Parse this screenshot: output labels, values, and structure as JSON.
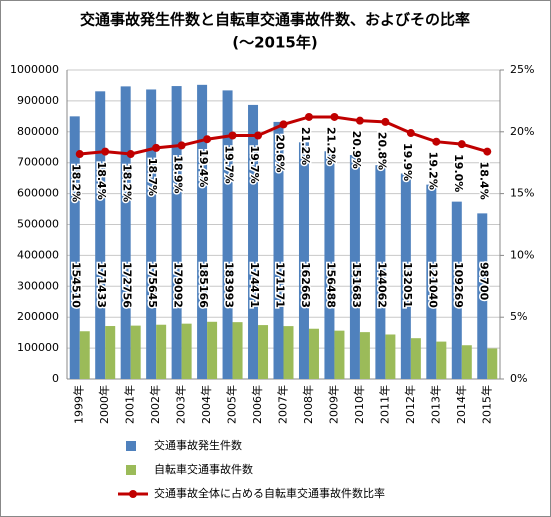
{
  "chart_data": {
    "type": "bar",
    "title": "交通事故発生件数と自転車交通事故件数、およびその比率",
    "subtitle": "(～2015年)",
    "categories": [
      "1999年",
      "2000年",
      "2001年",
      "2002年",
      "2003年",
      "2004年",
      "2005年",
      "2006年",
      "2007年",
      "2008年",
      "2009年",
      "2010年",
      "2011年",
      "2012年",
      "2013年",
      "2014年",
      "2015年"
    ],
    "series": [
      {
        "name": "交通事故発生件数",
        "color": "#4f81bd",
        "axis": "y",
        "values": [
          850000,
          931000,
          947000,
          937000,
          948000,
          952000,
          934000,
          887000,
          832000,
          766000,
          737000,
          725000,
          692000,
          665000,
          629000,
          574000,
          536000
        ]
      },
      {
        "name": "自転車交通事故件数",
        "color": "#9bbb59",
        "axis": "y",
        "values": [
          154510,
          171433,
          172756,
          175645,
          179092,
          185166,
          183993,
          174471,
          171171,
          162663,
          156488,
          151683,
          144062,
          132051,
          121040,
          109269,
          98700
        ]
      },
      {
        "name": "交通事故全体に占める自転車交通事故件数比率",
        "color": "#c00000",
        "axis": "y2",
        "values": [
          18.2,
          18.4,
          18.2,
          18.7,
          18.9,
          19.4,
          19.7,
          19.7,
          20.6,
          21.2,
          21.2,
          20.9,
          20.8,
          19.9,
          19.2,
          19.0,
          18.4
        ],
        "value_labels": [
          "18.2%",
          "18.4%",
          "18.2%",
          "18.7%",
          "18.9%",
          "19.4%",
          "19.7%",
          "19.7%",
          "20.6%",
          "21.2%",
          "21.2%",
          "20.9%",
          "20.8%",
          "19.9%",
          "19.2%",
          "19.0%",
          "18.4%"
        ]
      }
    ],
    "ylim": [
      0,
      1000000
    ],
    "yticks": [
      0,
      100000,
      200000,
      300000,
      400000,
      500000,
      600000,
      700000,
      800000,
      900000,
      1000000
    ],
    "y2lim": [
      0,
      25
    ],
    "y2ticks": [
      {
        "value": 0,
        "label": "0%"
      },
      {
        "value": 5,
        "label": "5%"
      },
      {
        "value": 10,
        "label": "10%"
      },
      {
        "value": 15,
        "label": "15%"
      },
      {
        "value": 20,
        "label": "20%"
      },
      {
        "value": 25,
        "label": "25%"
      }
    ],
    "grid": true,
    "legend": "bottom"
  }
}
